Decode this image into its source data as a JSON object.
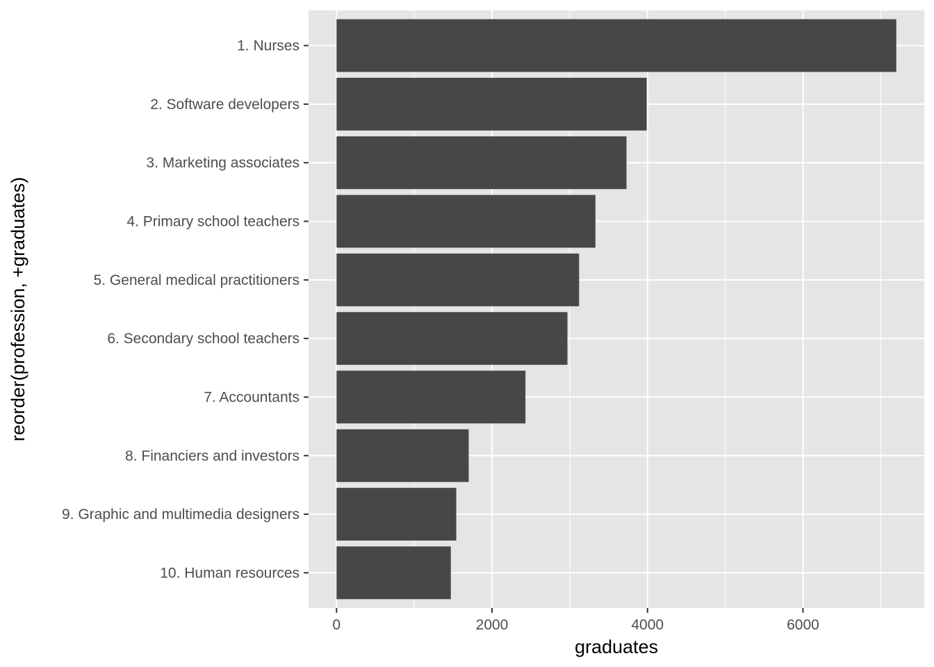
{
  "chart_data": {
    "type": "bar",
    "orientation": "horizontal",
    "categories": [
      "1. Nurses",
      "2. Software developers",
      "3. Marketing associates",
      "4. Primary school teachers",
      "5. General medical practitioners",
      "6. Secondary school teachers",
      "7. Accountants",
      "8. Financiers and investors",
      "9. Graphic and multimedia designers",
      "10. Human resources"
    ],
    "values": [
      7200,
      3990,
      3730,
      3330,
      3120,
      2970,
      2430,
      1700,
      1540,
      1470
    ],
    "xlabel": "graduates",
    "ylabel": "reorder(profession, +graduates)",
    "xlim": [
      -360,
      7560
    ],
    "xticks": [
      0,
      2000,
      4000,
      6000
    ],
    "xtick_labels": [
      "0",
      "2000",
      "4000",
      "6000"
    ],
    "grid": true,
    "colors": {
      "panel": "#e5e5e5",
      "grid": "#ffffff",
      "bar": "#474747",
      "text": "#4d4d4d"
    }
  }
}
